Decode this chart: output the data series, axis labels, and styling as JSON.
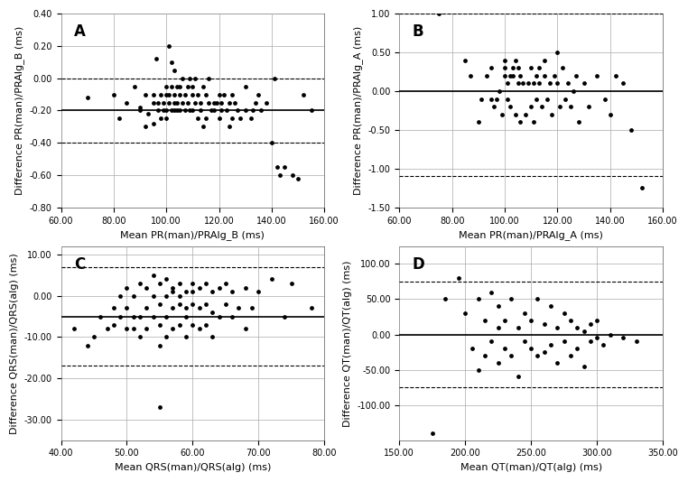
{
  "A": {
    "xlabel": "Mean PR(man)/PRAlg_B (ms)",
    "ylabel": "Difference PR(man)/PRAlg_B (ms)",
    "label": "A",
    "xlim": [
      60,
      160
    ],
    "ylim": [
      -0.8,
      0.4
    ],
    "xticks": [
      60,
      80,
      100,
      120,
      140,
      160
    ],
    "yticks": [
      -0.8,
      -0.6,
      -0.4,
      -0.2,
      0.0,
      0.2,
      0.4
    ],
    "hlines": [
      -0.2,
      -0.4,
      0.0
    ],
    "hline_styles": [
      "solid",
      "dashed",
      "dashed"
    ],
    "scatter_x": [
      70,
      80,
      82,
      85,
      88,
      90,
      90,
      92,
      92,
      93,
      95,
      95,
      95,
      96,
      97,
      97,
      98,
      98,
      99,
      99,
      100,
      100,
      100,
      100,
      101,
      101,
      101,
      102,
      102,
      102,
      103,
      103,
      103,
      103,
      104,
      104,
      104,
      105,
      105,
      105,
      106,
      106,
      107,
      107,
      108,
      108,
      109,
      109,
      110,
      110,
      110,
      111,
      111,
      112,
      112,
      113,
      113,
      114,
      114,
      115,
      115,
      116,
      116,
      117,
      118,
      118,
      119,
      120,
      120,
      121,
      121,
      122,
      123,
      124,
      124,
      125,
      125,
      126,
      127,
      128,
      130,
      130,
      132,
      133,
      134,
      135,
      136,
      138,
      140,
      141,
      142,
      143,
      145,
      148,
      150,
      152,
      155
    ],
    "scatter_y": [
      -0.12,
      -0.1,
      -0.25,
      -0.15,
      -0.05,
      -0.2,
      -0.18,
      -0.1,
      -0.3,
      -0.22,
      -0.28,
      -0.15,
      -0.1,
      0.12,
      -0.2,
      -0.15,
      -0.25,
      -0.1,
      -0.2,
      -0.15,
      -0.1,
      -0.05,
      -0.2,
      -0.25,
      0.2,
      -0.1,
      -0.15,
      -0.05,
      0.1,
      -0.2,
      -0.1,
      -0.2,
      -0.15,
      0.05,
      -0.05,
      -0.15,
      -0.2,
      -0.1,
      -0.05,
      -0.2,
      -0.15,
      0.0,
      -0.1,
      -0.2,
      -0.05,
      -0.15,
      0.0,
      -0.2,
      -0.1,
      -0.2,
      -0.05,
      0.0,
      -0.15,
      -0.1,
      -0.25,
      -0.15,
      -0.2,
      -0.05,
      -0.3,
      -0.1,
      -0.25,
      0.0,
      -0.15,
      -0.2,
      -0.15,
      -0.2,
      -0.15,
      -0.25,
      -0.1,
      -0.2,
      -0.15,
      -0.1,
      -0.2,
      -0.15,
      -0.3,
      -0.1,
      -0.25,
      -0.15,
      -0.2,
      -0.25,
      -0.2,
      -0.05,
      -0.25,
      -0.2,
      -0.15,
      -0.1,
      -0.2,
      -0.15,
      -0.4,
      0.0,
      -0.55,
      -0.6,
      -0.55,
      -0.6,
      -0.62,
      -0.1,
      -0.2
    ]
  },
  "B": {
    "xlabel": "Mean PR(man)/PRAlg_A (ms)",
    "ylabel": "Difference PR(man)/PRAlg_A (ms)",
    "label": "B",
    "xlim": [
      60,
      160
    ],
    "ylim": [
      -1.5,
      1.0
    ],
    "xticks": [
      60,
      80,
      100,
      120,
      140,
      160
    ],
    "yticks": [
      -1.5,
      -1.0,
      -0.5,
      0.0,
      0.5,
      1.0
    ],
    "hlines": [
      0.0,
      1.0,
      -1.1
    ],
    "hline_styles": [
      "solid",
      "dashed",
      "dashed"
    ],
    "scatter_x": [
      75,
      85,
      87,
      90,
      91,
      93,
      95,
      95,
      96,
      97,
      98,
      99,
      100,
      100,
      100,
      101,
      101,
      102,
      102,
      103,
      103,
      104,
      104,
      105,
      105,
      106,
      106,
      107,
      108,
      109,
      110,
      110,
      111,
      111,
      112,
      112,
      113,
      113,
      114,
      115,
      115,
      116,
      117,
      118,
      119,
      120,
      120,
      121,
      122,
      123,
      124,
      125,
      126,
      127,
      128,
      130,
      132,
      135,
      138,
      140,
      142,
      145,
      148,
      152
    ],
    "scatter_y": [
      1.0,
      0.4,
      0.2,
      -0.4,
      -0.1,
      0.2,
      -0.1,
      0.3,
      -0.2,
      -0.1,
      0.0,
      -0.3,
      0.4,
      0.3,
      0.2,
      -0.1,
      0.1,
      0.2,
      -0.2,
      0.3,
      0.2,
      -0.3,
      0.4,
      0.3,
      0.1,
      -0.4,
      0.2,
      0.1,
      -0.3,
      0.1,
      -0.2,
      0.3,
      0.1,
      -0.4,
      0.2,
      -0.1,
      0.3,
      0.1,
      -0.2,
      0.2,
      0.4,
      -0.1,
      0.1,
      -0.3,
      0.2,
      0.5,
      0.1,
      -0.2,
      0.3,
      -0.1,
      0.1,
      -0.2,
      0.0,
      0.2,
      -0.4,
      0.1,
      -0.2,
      0.2,
      -0.1,
      -0.3,
      0.2,
      0.1,
      -0.5,
      -1.25
    ]
  },
  "C": {
    "xlabel": "Mean QRS(man)/QRS(alg) (ms)",
    "ylabel": "Difference QRS(man)/QRS(alg) (ms)",
    "label": "C",
    "xlim": [
      40,
      80
    ],
    "ylim": [
      -35,
      12
    ],
    "xticks": [
      40,
      50,
      60,
      70,
      80
    ],
    "yticks": [
      -30,
      -20,
      -10,
      0,
      10
    ],
    "hlines": [
      -5,
      7,
      -17
    ],
    "hline_styles": [
      "solid",
      "dashed",
      "dashed"
    ],
    "scatter_x": [
      42,
      44,
      45,
      46,
      47,
      48,
      48,
      49,
      49,
      50,
      50,
      50,
      51,
      51,
      51,
      52,
      52,
      52,
      53,
      53,
      53,
      54,
      54,
      54,
      55,
      55,
      55,
      55,
      56,
      56,
      56,
      56,
      57,
      57,
      57,
      57,
      58,
      58,
      58,
      58,
      59,
      59,
      59,
      59,
      60,
      60,
      60,
      60,
      61,
      61,
      61,
      62,
      62,
      62,
      63,
      63,
      63,
      64,
      64,
      65,
      65,
      66,
      66,
      67,
      68,
      68,
      69,
      70,
      72,
      74,
      75,
      78,
      55
    ],
    "scatter_y": [
      -8,
      -12,
      -10,
      -5,
      -8,
      -3,
      -7,
      0,
      -5,
      -8,
      -3,
      2,
      -5,
      0,
      -8,
      3,
      -5,
      -10,
      2,
      -3,
      -8,
      5,
      0,
      -5,
      3,
      -2,
      -7,
      -12,
      4,
      0,
      -5,
      -10,
      2,
      -3,
      -8,
      1,
      3,
      -2,
      -7,
      0,
      1,
      -5,
      -10,
      -3,
      3,
      -2,
      -7,
      1,
      2,
      -3,
      -8,
      3,
      -2,
      -7,
      1,
      -4,
      -10,
      2,
      -5,
      3,
      -2,
      1,
      -5,
      -3,
      2,
      -8,
      -3,
      1,
      4,
      -5,
      3,
      -3,
      -27
    ]
  },
  "D": {
    "xlabel": "Mean QT(man)/QT(alg) (ms)",
    "ylabel": "Difference QT(man)/QT(alg) (ms)",
    "label": "D",
    "xlim": [
      150,
      350
    ],
    "ylim": [
      -150,
      125
    ],
    "xticks": [
      150,
      200,
      250,
      300,
      350
    ],
    "yticks": [
      -100,
      -50,
      0,
      50,
      100
    ],
    "hlines": [
      0,
      75,
      -75
    ],
    "hline_styles": [
      "solid",
      "dashed",
      "dashed"
    ],
    "scatter_x": [
      175,
      185,
      195,
      200,
      205,
      210,
      210,
      215,
      215,
      220,
      220,
      225,
      225,
      225,
      230,
      230,
      235,
      235,
      240,
      240,
      245,
      245,
      250,
      250,
      255,
      255,
      260,
      260,
      265,
      265,
      270,
      270,
      275,
      275,
      280,
      280,
      285,
      285,
      290,
      290,
      295,
      295,
      300,
      300,
      305,
      310,
      320,
      330
    ],
    "scatter_y": [
      -140,
      50,
      80,
      30,
      -20,
      50,
      -50,
      20,
      -30,
      60,
      -10,
      40,
      10,
      -40,
      20,
      -20,
      50,
      -30,
      10,
      -60,
      30,
      -10,
      20,
      -20,
      50,
      -30,
      15,
      -25,
      40,
      -15,
      10,
      -40,
      30,
      -10,
      20,
      -30,
      10,
      -20,
      5,
      -45,
      15,
      -10,
      20,
      -5,
      -15,
      0,
      -5,
      -10
    ]
  },
  "background_color": "#ffffff",
  "grid_color": "#aaaaaa",
  "line_color": "#000000",
  "dot_color": "#000000",
  "dot_size": 12,
  "font_size_label": 8,
  "font_size_tick": 7,
  "font_size_panel": 12
}
